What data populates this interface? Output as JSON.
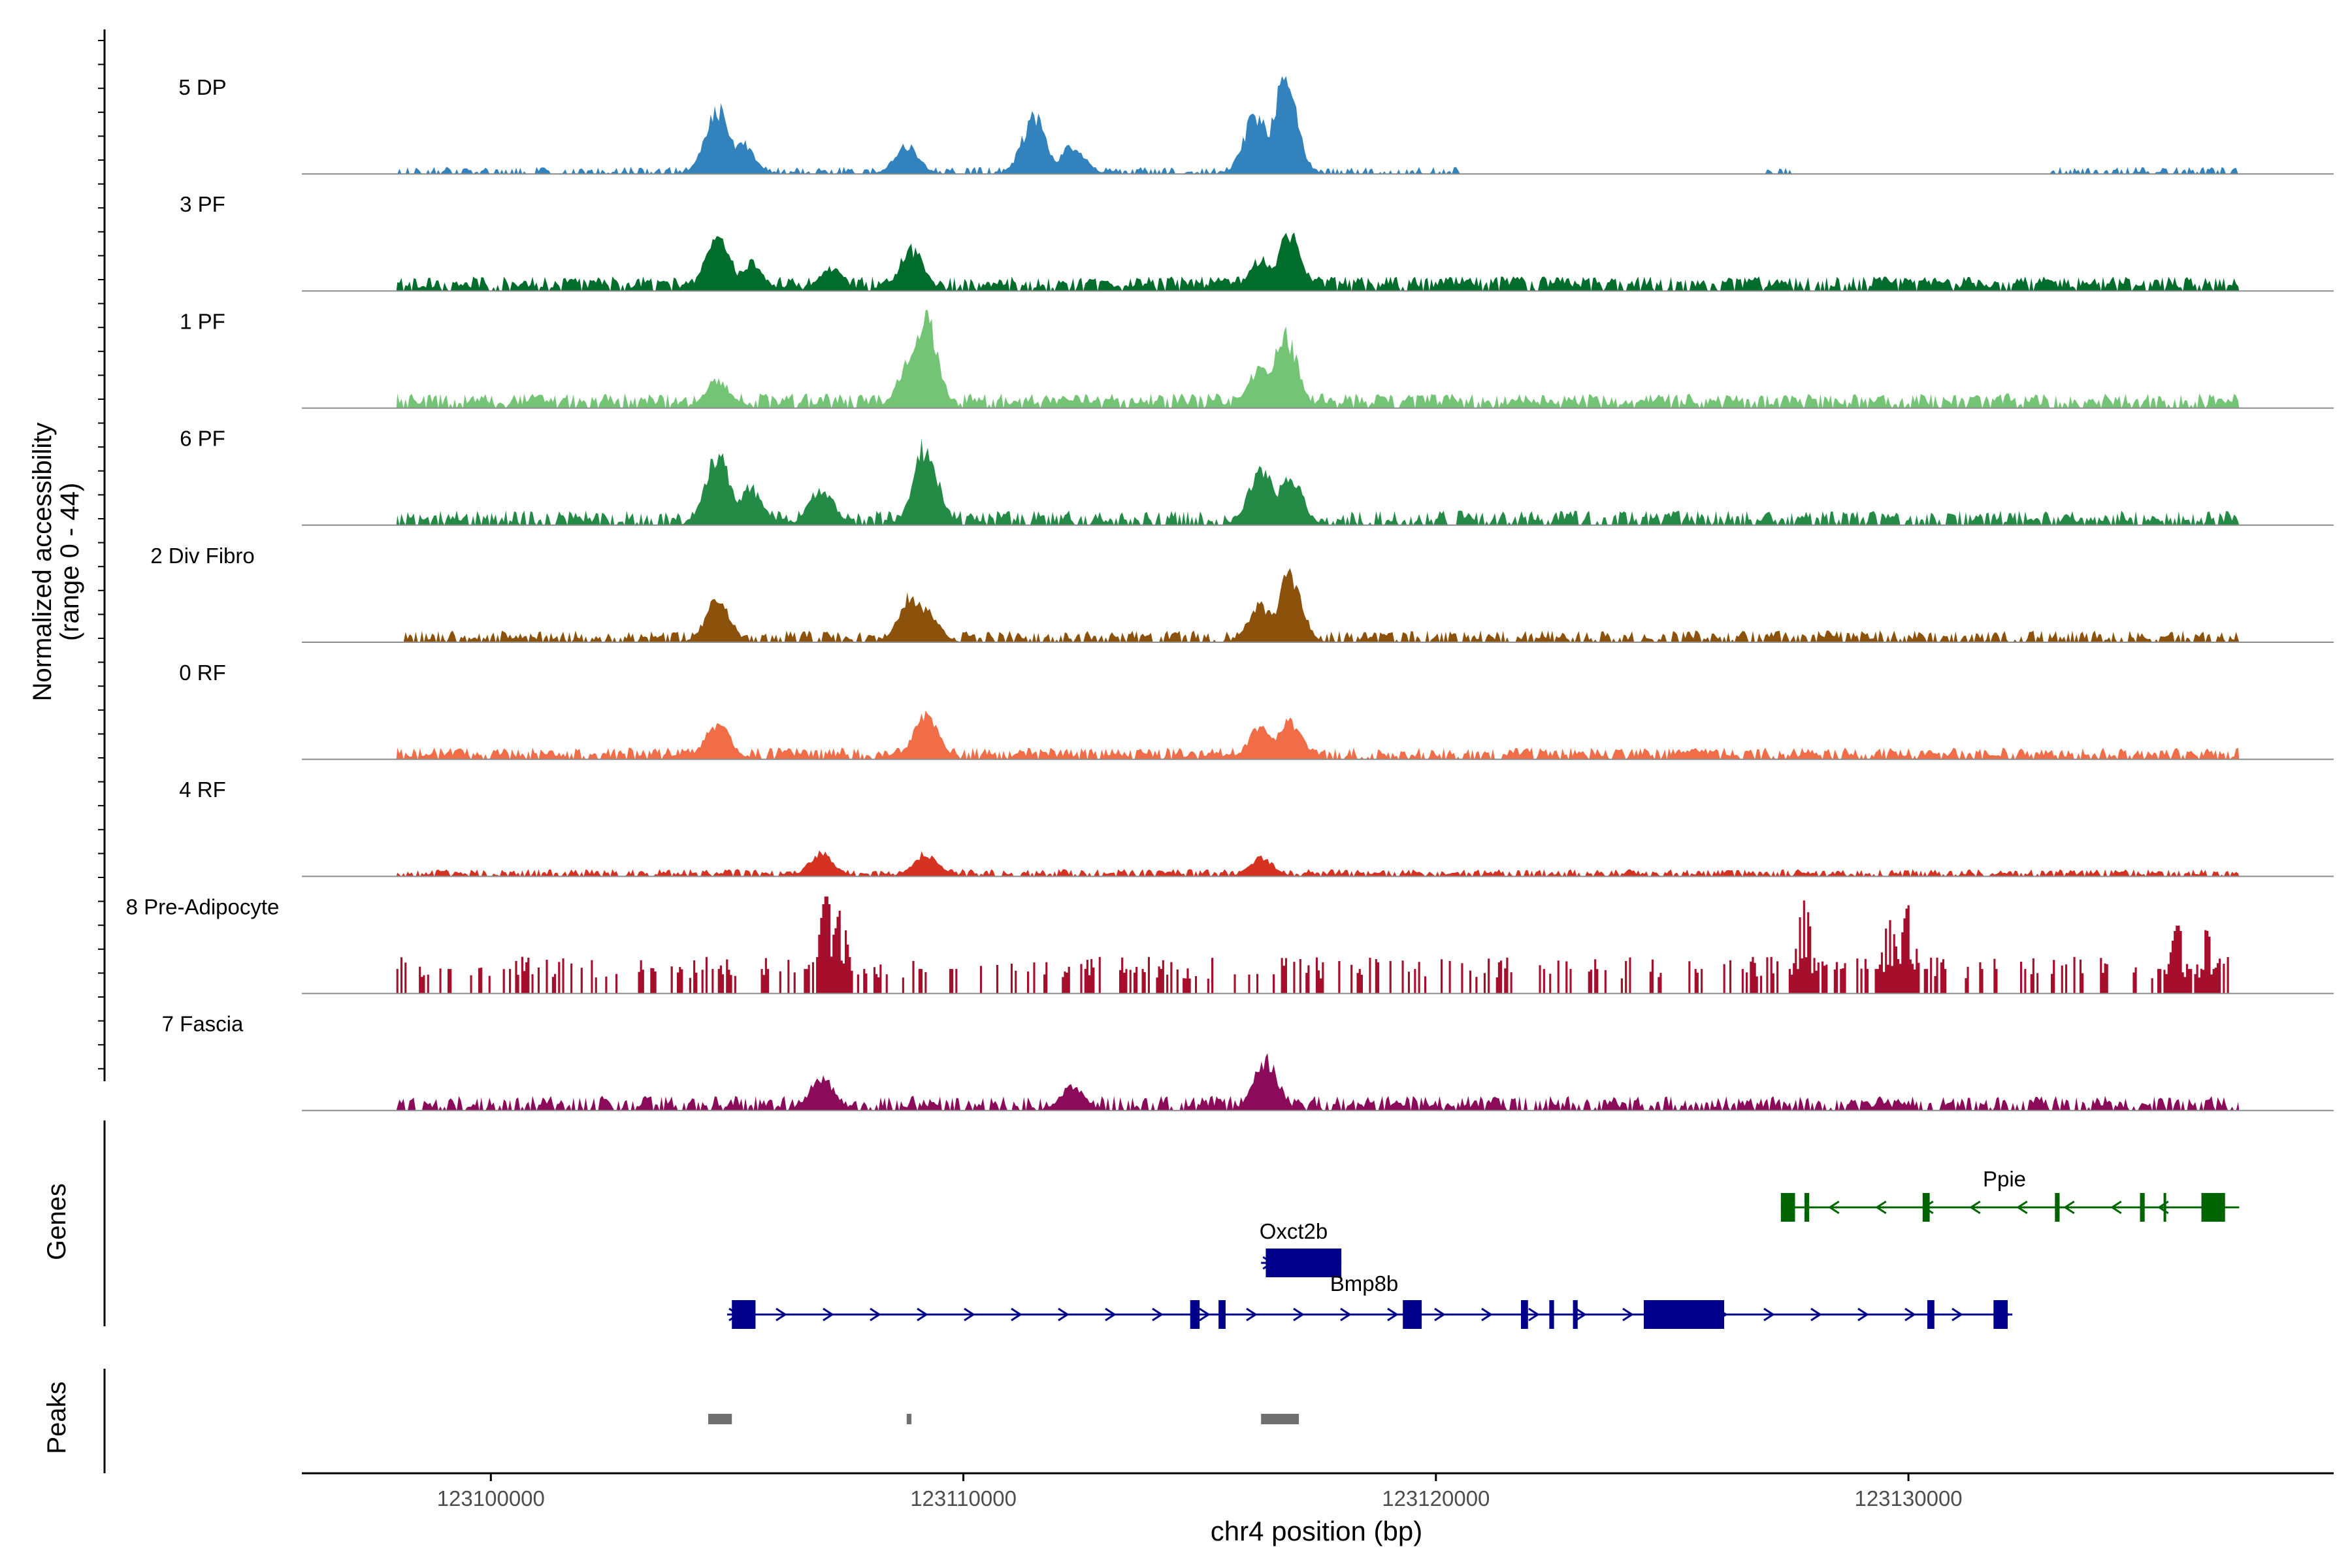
{
  "chart_data": {
    "type": "area",
    "title": "",
    "ylabel_line1": "Normalized accessibility",
    "ylabel_line2": "(range 0 - 44)",
    "xlabel": "chr4 position (bp)",
    "xlim": [
      123096000,
      123139000
    ],
    "ylim": [
      0,
      44
    ],
    "x_ticks": [
      123100000,
      123110000,
      123120000,
      123130000
    ],
    "x_tick_labels": [
      "123100000",
      "123110000",
      "123120000",
      "123130000"
    ],
    "data_extent": [
      123098000,
      123137000
    ],
    "tracks": [
      {
        "name": "5 DP",
        "color": "#3182bd",
        "peaks": [
          [
            123104800,
            0.7
          ],
          [
            123105300,
            0.35
          ],
          [
            123108800,
            0.3
          ],
          [
            123111500,
            0.6
          ],
          [
            123112300,
            0.3
          ],
          [
            123116200,
            0.65
          ],
          [
            123116800,
            1.0
          ]
        ],
        "base": 0.05,
        "spread": [
          [
            123098000,
            123120500
          ],
          [
            123127000,
            123127500
          ],
          [
            123133000,
            123137000
          ]
        ],
        "density": 0.55
      },
      {
        "name": "3 PF",
        "color": "#006d2c",
        "peaks": [
          [
            123104800,
            0.65
          ],
          [
            123105500,
            0.3
          ],
          [
            123107200,
            0.25
          ],
          [
            123108900,
            0.45
          ],
          [
            123116300,
            0.35
          ],
          [
            123116900,
            0.6
          ]
        ],
        "base": 0.1,
        "spread": [
          [
            123098000,
            123137000
          ]
        ],
        "density": 0.85
      },
      {
        "name": "1 PF",
        "color": "#74c476",
        "peaks": [
          [
            123104800,
            0.3
          ],
          [
            123108900,
            0.55
          ],
          [
            123109200,
            0.95
          ],
          [
            123116300,
            0.45
          ],
          [
            123116800,
            0.8
          ]
        ],
        "base": 0.1,
        "spread": [
          [
            123098000,
            123137000
          ]
        ],
        "density": 0.85
      },
      {
        "name": "6 PF",
        "color": "#238b45",
        "peaks": [
          [
            123104800,
            0.75
          ],
          [
            123105500,
            0.4
          ],
          [
            123107000,
            0.4
          ],
          [
            123109200,
            0.85
          ],
          [
            123116300,
            0.6
          ],
          [
            123116900,
            0.55
          ]
        ],
        "base": 0.1,
        "spread": [
          [
            123098000,
            123137000
          ]
        ],
        "density": 0.7
      },
      {
        "name": "2 Div Fibro",
        "color": "#8c510a",
        "peaks": [
          [
            123104800,
            0.45
          ],
          [
            123108900,
            0.5
          ],
          [
            123109200,
            0.35
          ],
          [
            123116300,
            0.4
          ],
          [
            123116900,
            0.7
          ]
        ],
        "base": 0.08,
        "spread": [
          [
            123098000,
            123137000
          ]
        ],
        "density": 0.7
      },
      {
        "name": "0 RF",
        "color": "#f16d47",
        "peaks": [
          [
            123104800,
            0.4
          ],
          [
            123109200,
            0.5
          ],
          [
            123116300,
            0.35
          ],
          [
            123116900,
            0.4
          ]
        ],
        "base": 0.08,
        "spread": [
          [
            123098000,
            123137000
          ]
        ],
        "density": 0.8
      },
      {
        "name": "4 RF",
        "color": "#d63222",
        "peaks": [
          [
            123107000,
            0.25
          ],
          [
            123109200,
            0.25
          ],
          [
            123116300,
            0.2
          ]
        ],
        "base": 0.05,
        "spread": [
          [
            123098000,
            123137000
          ]
        ],
        "density": 0.75
      },
      {
        "name": "8 Pre-Adipocyte",
        "color": "#a50f2b",
        "peaks": [
          [
            123107100,
            1.0
          ],
          [
            123107400,
            0.85
          ],
          [
            123127800,
            0.95
          ],
          [
            123129600,
            0.75
          ],
          [
            123130000,
            0.9
          ],
          [
            123135700,
            0.7
          ],
          [
            123136300,
            0.65
          ]
        ],
        "base": 0.25,
        "spread": [
          [
            123098000,
            123137000
          ]
        ],
        "density": 0.35,
        "blocky": true
      },
      {
        "name": "7 Fascia",
        "color": "#8c0a5a",
        "peaks": [
          [
            123107000,
            0.35
          ],
          [
            123112300,
            0.25
          ],
          [
            123116400,
            0.55
          ]
        ],
        "base": 0.1,
        "spread": [
          [
            123098000,
            123137000
          ]
        ],
        "density": 0.7
      }
    ]
  },
  "genes_panel": {
    "label": "Genes",
    "genes": [
      {
        "name": "Ppie",
        "strand": "-",
        "color": "#006400",
        "start": 123127300,
        "end": 123137000,
        "exons": [
          [
            123127300,
            123127600
          ],
          [
            123127800,
            123127900
          ],
          [
            123130300,
            123130450
          ],
          [
            123133100,
            123133200
          ],
          [
            123134900,
            123135000
          ],
          [
            123135400,
            123135450
          ],
          [
            123136200,
            123136700
          ]
        ]
      },
      {
        "name": "Oxct2b",
        "strand": "+",
        "color": "#00008b",
        "start": 123116300,
        "end": 123118000,
        "exons": [
          [
            123116400,
            123118000
          ]
        ]
      },
      {
        "name": "Bmp8b",
        "strand": "+",
        "color": "#00008b",
        "start": 123105000,
        "end": 123132200,
        "exons": [
          [
            123105100,
            123105600
          ],
          [
            123114800,
            123115000
          ],
          [
            123115400,
            123115550
          ],
          [
            123119300,
            123119700
          ],
          [
            123121800,
            123121950
          ],
          [
            123122400,
            123122500
          ],
          [
            123122900,
            123123000
          ],
          [
            123124400,
            123126100
          ],
          [
            123130400,
            123130550
          ],
          [
            123131800,
            123132100
          ]
        ]
      }
    ]
  },
  "peaks_panel": {
    "label": "Peaks",
    "color": "#707070",
    "peaks": [
      [
        123104600,
        123105100
      ],
      [
        123108800,
        123108900
      ],
      [
        123116300,
        123117100
      ]
    ]
  }
}
